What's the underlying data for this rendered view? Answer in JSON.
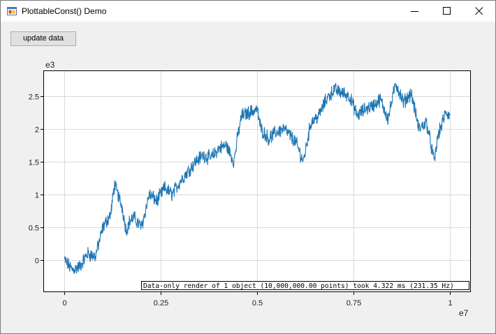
{
  "window": {
    "title": "PlottableConst() Demo",
    "icon": "app-window-icon"
  },
  "toolbar": {
    "update_label": "update data"
  },
  "chart_data": {
    "type": "line",
    "x_multiplier_label": "e7",
    "y_multiplier_label": "e3",
    "xlim": [
      -0.055,
      1.055
    ],
    "ylim": [
      -0.49,
      2.89
    ],
    "x_ticks": [
      0,
      0.25,
      0.5,
      0.75,
      1
    ],
    "x_tick_labels": [
      "0",
      "0.25",
      "0.5",
      "0.75",
      "1"
    ],
    "y_ticks": [
      0,
      0.5,
      1,
      1.5,
      2,
      2.5
    ],
    "y_tick_labels": [
      "0",
      "0.5",
      "1",
      "1.5",
      "2",
      "2.5"
    ],
    "grid": true,
    "series_color": "#1f77b4",
    "series": [
      {
        "x": [
          0,
          0.02,
          0.04,
          0.06,
          0.08,
          0.1,
          0.12,
          0.13,
          0.15,
          0.16,
          0.17,
          0.18,
          0.2,
          0.22,
          0.24,
          0.26,
          0.28,
          0.3,
          0.32,
          0.34,
          0.36,
          0.38,
          0.4,
          0.42,
          0.44,
          0.45,
          0.46,
          0.48,
          0.5,
          0.51,
          0.53,
          0.55,
          0.57,
          0.6,
          0.62,
          0.64,
          0.66,
          0.68,
          0.7,
          0.72,
          0.74,
          0.76,
          0.78,
          0.8,
          0.82,
          0.84,
          0.86,
          0.88,
          0.9,
          0.92,
          0.94,
          0.96,
          0.97,
          0.99,
          1
        ],
        "y": [
          0,
          -0.15,
          -0.1,
          0.1,
          0.05,
          0.5,
          0.7,
          1.15,
          0.8,
          0.45,
          0.6,
          0.65,
          0.5,
          1.0,
          0.9,
          1.1,
          1.0,
          1.2,
          1.35,
          1.5,
          1.6,
          1.55,
          1.7,
          1.75,
          1.5,
          1.9,
          2.2,
          2.25,
          2.3,
          2.0,
          1.85,
          1.95,
          2.0,
          1.8,
          1.5,
          2.1,
          2.2,
          2.45,
          2.6,
          2.55,
          2.5,
          2.2,
          2.3,
          2.35,
          2.45,
          2.15,
          2.7,
          2.4,
          2.55,
          2.0,
          2.1,
          1.5,
          1.9,
          2.25,
          2.2
        ]
      }
    ]
  },
  "benchmark": {
    "text": "Data-only render of 1 object (10,000,000.00 points) took 4.322 ms (231.35 Hz)"
  }
}
